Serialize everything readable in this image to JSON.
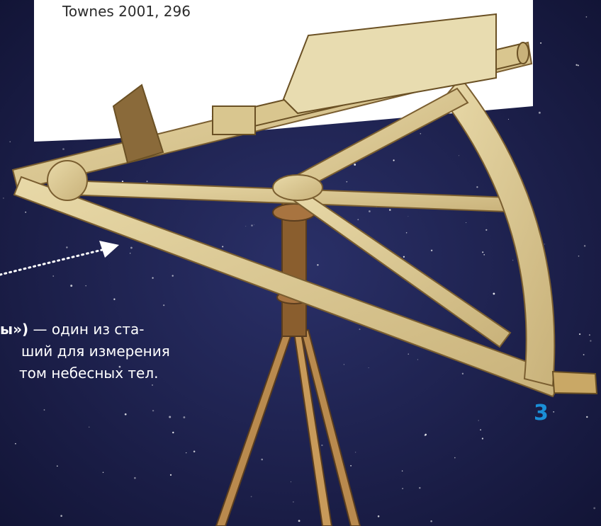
{
  "caption": {
    "source": "Townes 2001, 296",
    "lines": [
      {
        "bold": "ы»)",
        "text": " — один из ста-"
      },
      {
        "text": "ший для измерения"
      },
      {
        "text": "том небесных тел."
      }
    ]
  },
  "page_number": "3"
}
